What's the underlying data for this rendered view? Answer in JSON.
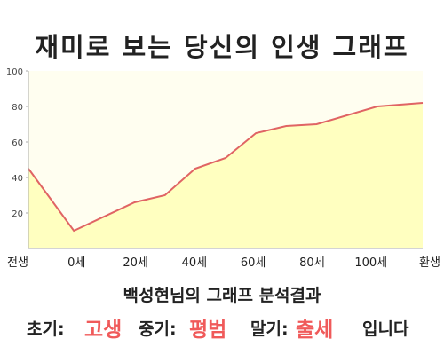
{
  "title": "재미로 보는 당신의 인생 그래프",
  "chart_data": {
    "type": "area",
    "x_labels": [
      "전생",
      "0세",
      "20세",
      "40세",
      "60세",
      "80세",
      "100세",
      "환생"
    ],
    "x": [
      -15,
      0,
      20,
      30,
      40,
      50,
      60,
      70,
      80,
      90,
      100,
      115
    ],
    "y": [
      45,
      10,
      26,
      30,
      45,
      51,
      65,
      69,
      70,
      75,
      80,
      82
    ],
    "xlim": [
      -15,
      115
    ],
    "ylim": [
      0,
      100
    ],
    "y_ticks": [
      20,
      40,
      60,
      80,
      100
    ],
    "grid": false,
    "colors": {
      "line": "#e06464",
      "fill": "#ffffc0",
      "plot_bg": "#fffef0",
      "axis": "#aaaaaa"
    }
  },
  "result": {
    "heading": "백성현님의 그래프 분석결과",
    "early_label": "초기:",
    "early_value": "고생",
    "middle_label": "중기:",
    "middle_value": "평범",
    "late_label": "말기:",
    "late_value": "출세",
    "suffix": "입니다"
  }
}
